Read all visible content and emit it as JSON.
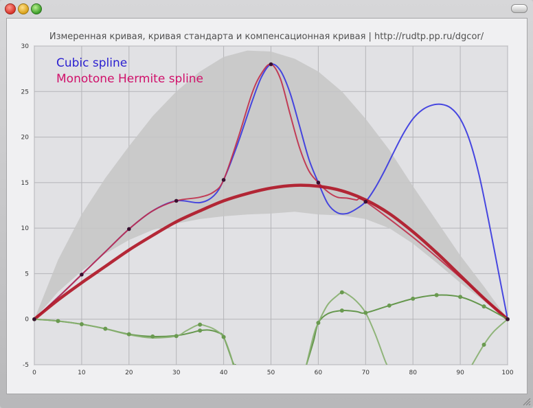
{
  "window": {
    "controls": [
      "close-button",
      "minimize-button",
      "zoom-button",
      "toolbar-toggle-button"
    ]
  },
  "chart_data": {
    "type": "line",
    "title": "Измеренная кривая, кривая стандарта и компенсационная кривая | http://rudtp.pp.ru/dgcor/",
    "xlim": [
      0,
      100
    ],
    "ylim": [
      -5,
      30
    ],
    "x_ticks": [
      0,
      10,
      20,
      30,
      40,
      50,
      60,
      70,
      80,
      90,
      100
    ],
    "y_ticks": [
      -5,
      0,
      5,
      10,
      15,
      20,
      25,
      30
    ],
    "grid": true,
    "legend_position": "top-left",
    "legend": [
      {
        "label": "Cubic spline",
        "color": "#2a1fd0"
      },
      {
        "label": "Monotone Hermite spline",
        "color": "#d0106a"
      }
    ],
    "band": {
      "color": "#c6c6c6",
      "upper": [
        [
          0,
          0
        ],
        [
          5,
          6.5
        ],
        [
          10,
          11.5
        ],
        [
          15,
          15.5
        ],
        [
          20,
          19
        ],
        [
          25,
          22.3
        ],
        [
          30,
          25
        ],
        [
          35,
          27.2
        ],
        [
          40,
          28.8
        ],
        [
          45,
          29.5
        ],
        [
          50,
          29.4
        ],
        [
          55,
          28.6
        ],
        [
          60,
          27.2
        ],
        [
          65,
          25
        ],
        [
          70,
          22
        ],
        [
          75,
          18.6
        ],
        [
          80,
          14.6
        ],
        [
          85,
          10.8
        ],
        [
          90,
          7
        ],
        [
          95,
          3.6
        ],
        [
          100,
          0
        ]
      ],
      "lower": [
        [
          0,
          0
        ],
        [
          5,
          3
        ],
        [
          10,
          5.3
        ],
        [
          15,
          7.2
        ],
        [
          20,
          8.7
        ],
        [
          25,
          9.8
        ],
        [
          30,
          10.5
        ],
        [
          35,
          11
        ],
        [
          40,
          11.3
        ],
        [
          45,
          11.5
        ],
        [
          50,
          11.6
        ],
        [
          55,
          11.8
        ],
        [
          60,
          11.5
        ],
        [
          65,
          11.4
        ],
        [
          70,
          11
        ],
        [
          75,
          10
        ],
        [
          80,
          8.3
        ],
        [
          85,
          6.2
        ],
        [
          90,
          4
        ],
        [
          95,
          2
        ],
        [
          100,
          0
        ]
      ]
    },
    "measured_points": {
      "color": "#3a1030",
      "points": [
        [
          0,
          0
        ],
        [
          10,
          4.9
        ],
        [
          20,
          9.9
        ],
        [
          30,
          13
        ],
        [
          40,
          15.3
        ],
        [
          50,
          28
        ],
        [
          60,
          15
        ],
        [
          70,
          12.9
        ],
        [
          100,
          0
        ]
      ]
    },
    "series": [
      {
        "name": "Cubic spline",
        "color": "#3838e0",
        "width": 2,
        "points": [
          [
            0,
            0
          ],
          [
            5,
            2.4
          ],
          [
            10,
            4.9
          ],
          [
            15,
            7.4
          ],
          [
            20,
            9.9
          ],
          [
            25,
            11.9
          ],
          [
            30,
            13
          ],
          [
            35,
            12.8
          ],
          [
            38,
            13.6
          ],
          [
            40,
            15.3
          ],
          [
            43,
            19.3
          ],
          [
            46,
            23.9
          ],
          [
            48,
            26.6
          ],
          [
            50,
            28
          ],
          [
            52,
            27.3
          ],
          [
            54,
            24.9
          ],
          [
            56,
            21.3
          ],
          [
            58,
            17.6
          ],
          [
            60,
            15
          ],
          [
            62,
            12.7
          ],
          [
            64,
            11.7
          ],
          [
            66,
            11.6
          ],
          [
            68,
            12.1
          ],
          [
            70,
            12.9
          ],
          [
            72,
            14.4
          ],
          [
            74,
            16.3
          ],
          [
            76,
            18.4
          ],
          [
            78,
            20.4
          ],
          [
            80,
            22
          ],
          [
            82,
            23
          ],
          [
            84,
            23.5
          ],
          [
            86,
            23.6
          ],
          [
            88,
            23.2
          ],
          [
            90,
            22
          ],
          [
            92,
            19.6
          ],
          [
            94,
            15.8
          ],
          [
            96,
            10.8
          ],
          [
            98,
            5.4
          ],
          [
            100,
            0
          ]
        ]
      },
      {
        "name": "Monotone Hermite spline",
        "color": "#c0304c",
        "width": 2,
        "points": [
          [
            0,
            0
          ],
          [
            5,
            2.4
          ],
          [
            10,
            4.9
          ],
          [
            15,
            7.4
          ],
          [
            20,
            9.9
          ],
          [
            25,
            11.9
          ],
          [
            30,
            13
          ],
          [
            35,
            13.4
          ],
          [
            38,
            14
          ],
          [
            40,
            15.3
          ],
          [
            43,
            19.8
          ],
          [
            46,
            24.8
          ],
          [
            48,
            27
          ],
          [
            50,
            28
          ],
          [
            52,
            26.4
          ],
          [
            54,
            22.6
          ],
          [
            56,
            18.9
          ],
          [
            58,
            16.3
          ],
          [
            60,
            15
          ],
          [
            62,
            14
          ],
          [
            64,
            13.4
          ],
          [
            66,
            13.3
          ],
          [
            68,
            13.1
          ],
          [
            70,
            12.9
          ],
          [
            80,
            9
          ],
          [
            90,
            4.6
          ],
          [
            100,
            0
          ]
        ]
      },
      {
        "name": "standard-curve",
        "color": "#b01828",
        "width": 4.5,
        "points": [
          [
            0,
            0
          ],
          [
            5,
            2.1
          ],
          [
            10,
            4
          ],
          [
            15,
            5.8
          ],
          [
            20,
            7.6
          ],
          [
            25,
            9.2
          ],
          [
            30,
            10.7
          ],
          [
            35,
            11.9
          ],
          [
            40,
            13
          ],
          [
            45,
            13.8
          ],
          [
            50,
            14.4
          ],
          [
            55,
            14.7
          ],
          [
            60,
            14.6
          ],
          [
            65,
            14.1
          ],
          [
            70,
            13.1
          ],
          [
            75,
            11.6
          ],
          [
            80,
            9.6
          ],
          [
            85,
            7.3
          ],
          [
            90,
            4.8
          ],
          [
            95,
            2.3
          ],
          [
            100,
            0
          ]
        ]
      },
      {
        "name": "compensation-smooth",
        "color": "#5a9040",
        "width": 2,
        "points": [
          [
            0,
            0
          ],
          [
            5,
            -0.2
          ],
          [
            10,
            -0.55
          ],
          [
            15,
            -1.05
          ],
          [
            20,
            -1.65
          ],
          [
            25,
            -1.9
          ],
          [
            30,
            -1.8
          ],
          [
            33,
            -1.5
          ],
          [
            35,
            -1.25
          ],
          [
            37,
            -1.2
          ],
          [
            39,
            -1.5
          ],
          [
            40,
            -1.95
          ],
          [
            42,
            -4.8
          ],
          [
            42.5,
            -5
          ]
        ]
      },
      {
        "name": "compensation-smooth-right",
        "color": "#5a9040",
        "width": 2,
        "points": [
          [
            57.5,
            -5
          ],
          [
            59,
            -2.4
          ],
          [
            60,
            -0.4
          ],
          [
            62,
            0.6
          ],
          [
            65,
            0.95
          ],
          [
            68,
            0.85
          ],
          [
            70,
            0.7
          ],
          [
            75,
            1.5
          ],
          [
            80,
            2.25
          ],
          [
            85,
            2.65
          ],
          [
            90,
            2.45
          ],
          [
            95,
            1.4
          ],
          [
            100,
            0
          ]
        ]
      },
      {
        "name": "compensation-oscillating",
        "color": "#88b070",
        "width": 2,
        "points": [
          [
            0,
            0
          ],
          [
            5,
            -0.2
          ],
          [
            10,
            -0.55
          ],
          [
            15,
            -1.05
          ],
          [
            20,
            -1.7
          ],
          [
            25,
            -2.05
          ],
          [
            30,
            -1.85
          ],
          [
            32,
            -1.3
          ],
          [
            34,
            -0.75
          ],
          [
            35,
            -0.6
          ],
          [
            36,
            -0.7
          ],
          [
            38,
            -1.1
          ],
          [
            40,
            -2
          ],
          [
            41.5,
            -4
          ],
          [
            42,
            -5
          ]
        ]
      },
      {
        "name": "compensation-oscillating-right",
        "color": "#88b070",
        "width": 2,
        "points": [
          [
            57.5,
            -5
          ],
          [
            59,
            -1.8
          ],
          [
            60,
            -0.4
          ],
          [
            62,
            1.6
          ],
          [
            64,
            2.6
          ],
          [
            65,
            2.95
          ],
          [
            66,
            2.8
          ],
          [
            68,
            2
          ],
          [
            70,
            0.7
          ],
          [
            72,
            -1.6
          ],
          [
            74,
            -4.4
          ],
          [
            74.5,
            -5
          ]
        ]
      },
      {
        "name": "compensation-oscillating-tail",
        "color": "#88b070",
        "width": 2,
        "points": [
          [
            92.5,
            -5
          ],
          [
            95,
            -2.8
          ],
          [
            97,
            -1.4
          ],
          [
            100,
            0
          ]
        ]
      }
    ],
    "marker_sets": [
      {
        "color": "#6a9a50",
        "points": [
          [
            0,
            0
          ],
          [
            5,
            -0.2
          ],
          [
            10,
            -0.55
          ],
          [
            15,
            -1.05
          ],
          [
            20,
            -1.65
          ],
          [
            25,
            -1.9
          ],
          [
            30,
            -1.85
          ],
          [
            35,
            -0.6
          ],
          [
            35,
            -1.25
          ],
          [
            40,
            -1.95
          ],
          [
            60,
            -0.4
          ],
          [
            65,
            0.95
          ],
          [
            65,
            2.95
          ],
          [
            70,
            0.7
          ],
          [
            75,
            1.5
          ],
          [
            80,
            2.25
          ],
          [
            85,
            2.65
          ],
          [
            90,
            2.45
          ],
          [
            95,
            1.4
          ],
          [
            95,
            -2.8
          ],
          [
            100,
            0
          ]
        ]
      }
    ]
  }
}
